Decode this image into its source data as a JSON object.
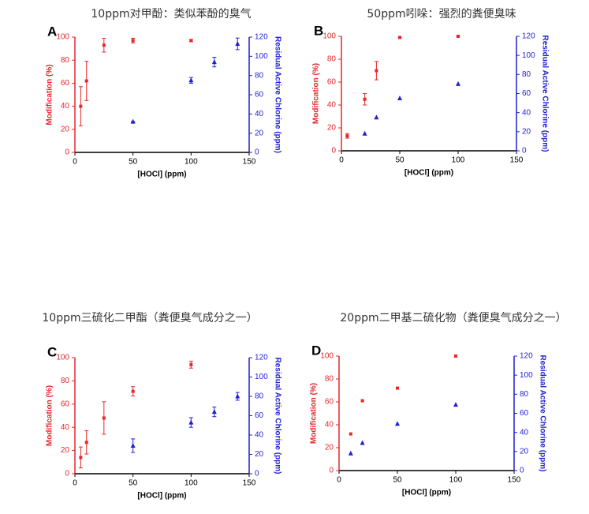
{
  "chart_data": [
    {
      "type": "scatter",
      "title": "10ppm对甲酚：类似苯酚的臭气",
      "panel_label": "A",
      "xlabel": "[HOCl] (ppm)",
      "ylabel": "Modification (%)",
      "y2label": "Residual Active Chlorine (ppm)",
      "xlim": [
        0,
        150
      ],
      "xticks": [
        0,
        50,
        100,
        150
      ],
      "ylim": [
        0,
        100
      ],
      "yticks": [
        0,
        20,
        40,
        60,
        80,
        100
      ],
      "y2lim": [
        0,
        120
      ],
      "y2ticks": [
        0,
        20,
        40,
        60,
        80,
        100,
        120
      ],
      "series": [
        {
          "color": "#e8262b",
          "marker": "square",
          "x": [
            5,
            10,
            25,
            50,
            100
          ],
          "values": [
            40,
            62,
            93,
            97,
            97
          ],
          "errors": [
            17,
            17,
            6,
            2,
            1
          ]
        },
        {
          "color": "#1f1fd6",
          "marker": "triangle",
          "axis": "y2",
          "x": [
            50,
            100,
            120,
            140
          ],
          "values": [
            32,
            75,
            94,
            113
          ],
          "errors": [
            0,
            3,
            5,
            6
          ]
        }
      ]
    },
    {
      "type": "scatter",
      "title": "50ppm吲哚：强烈的粪便臭味",
      "panel_label": "B",
      "xlabel": "[HOCl] (ppm)",
      "ylabel": "Modification (%)",
      "y2label": "Residual Active Chlorine (ppm)",
      "xlim": [
        0,
        150
      ],
      "xticks": [
        0,
        50,
        100,
        150
      ],
      "ylim": [
        0,
        100
      ],
      "yticks": [
        0,
        20,
        40,
        60,
        80,
        100
      ],
      "y2lim": [
        0,
        120
      ],
      "y2ticks": [
        0,
        20,
        40,
        60,
        80,
        100,
        120
      ],
      "series": [
        {
          "color": "#e8262b",
          "marker": "square",
          "x": [
            5,
            20,
            30,
            50,
            100
          ],
          "values": [
            13,
            45,
            70,
            99,
            100
          ],
          "errors": [
            2,
            5,
            8,
            0,
            0
          ]
        },
        {
          "color": "#1f1fd6",
          "marker": "triangle",
          "axis": "y2",
          "x": [
            20,
            30,
            50,
            100
          ],
          "values": [
            18,
            35,
            55,
            70
          ]
        }
      ]
    },
    {
      "type": "scatter",
      "title": "10ppm三硫化二甲酯（粪便臭气成分之一）",
      "panel_label": "C",
      "xlabel": "[HOCl] (ppm)",
      "ylabel": "Modification (%)",
      "y2label": "Residual Active Chlorine (ppm)",
      "xlim": [
        0,
        150
      ],
      "xticks": [
        0,
        50,
        100,
        150
      ],
      "ylim": [
        0,
        100
      ],
      "yticks": [
        0,
        20,
        40,
        60,
        80,
        100
      ],
      "y2lim": [
        0,
        120
      ],
      "y2ticks": [
        0,
        20,
        40,
        60,
        80,
        100,
        120
      ],
      "series": [
        {
          "color": "#e8262b",
          "marker": "square",
          "x": [
            5,
            10,
            25,
            50,
            100
          ],
          "values": [
            14,
            27,
            48,
            71,
            94
          ],
          "errors": [
            9,
            10,
            14,
            4,
            3
          ]
        },
        {
          "color": "#1f1fd6",
          "marker": "triangle",
          "axis": "y2",
          "x": [
            50,
            100,
            120,
            140
          ],
          "values": [
            29,
            53,
            64,
            80
          ],
          "errors": [
            7,
            5,
            5,
            4
          ]
        }
      ]
    },
    {
      "type": "scatter",
      "title": "20ppm二甲基二硫化物（粪便臭气成分之一）",
      "panel_label": "D",
      "xlabel": "[HOCl] (ppm)",
      "ylabel": "Modification (%)",
      "y2label": "Residual Active Chlorine (ppm)",
      "xlim": [
        0,
        150
      ],
      "xticks": [
        0,
        50,
        100,
        150
      ],
      "ylim": [
        0,
        100
      ],
      "yticks": [
        0,
        20,
        40,
        60,
        80,
        100
      ],
      "y2lim": [
        0,
        120
      ],
      "y2ticks": [
        0,
        20,
        40,
        60,
        80,
        100,
        120
      ],
      "series": [
        {
          "color": "#e8262b",
          "marker": "square",
          "x": [
            10,
            20,
            50,
            100
          ],
          "values": [
            32,
            61,
            72,
            100
          ]
        },
        {
          "color": "#1f1fd6",
          "marker": "triangle",
          "axis": "y2",
          "x": [
            10,
            20,
            50,
            100
          ],
          "values": [
            18,
            29,
            49,
            69
          ]
        }
      ]
    }
  ]
}
